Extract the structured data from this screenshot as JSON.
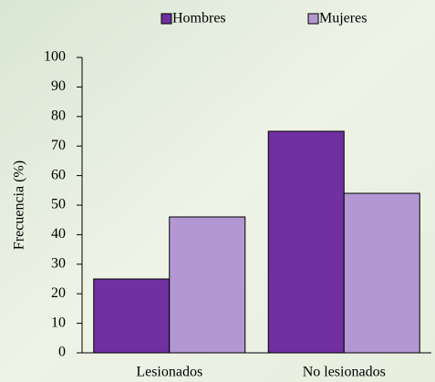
{
  "chart_data": {
    "type": "bar",
    "y_label": "Frecuencia (%)",
    "categories": [
      "Lesionados",
      "No lesionados"
    ],
    "series": [
      {
        "name": "Hombres",
        "color": "#7030a0",
        "values": [
          25,
          75
        ]
      },
      {
        "name": "Mujeres",
        "color": "#b397d3",
        "values": [
          46,
          54
        ]
      }
    ],
    "ylim": [
      0,
      100
    ],
    "yticks": [
      0,
      10,
      20,
      30,
      40,
      50,
      60,
      70,
      80,
      90,
      100
    ],
    "grid": false,
    "legend": "top"
  }
}
